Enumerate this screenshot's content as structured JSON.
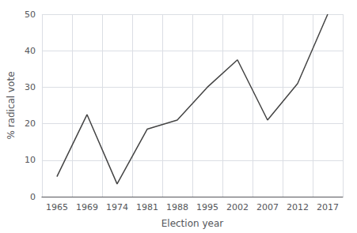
{
  "chart_data": {
    "type": "line",
    "categories": [
      "1965",
      "1969",
      "1974",
      "1981",
      "1988",
      "1995",
      "2002",
      "2007",
      "2012",
      "2017"
    ],
    "values": [
      5.5,
      22.5,
      3.5,
      18.5,
      21.0,
      30.0,
      37.5,
      21.0,
      31.0,
      50.0
    ],
    "xlabel": "Election year",
    "ylabel": "% radical vote",
    "ylim": [
      0,
      50
    ],
    "yticks": [
      0,
      10,
      20,
      30,
      40,
      50
    ],
    "color": "#444444",
    "grid": true
  }
}
